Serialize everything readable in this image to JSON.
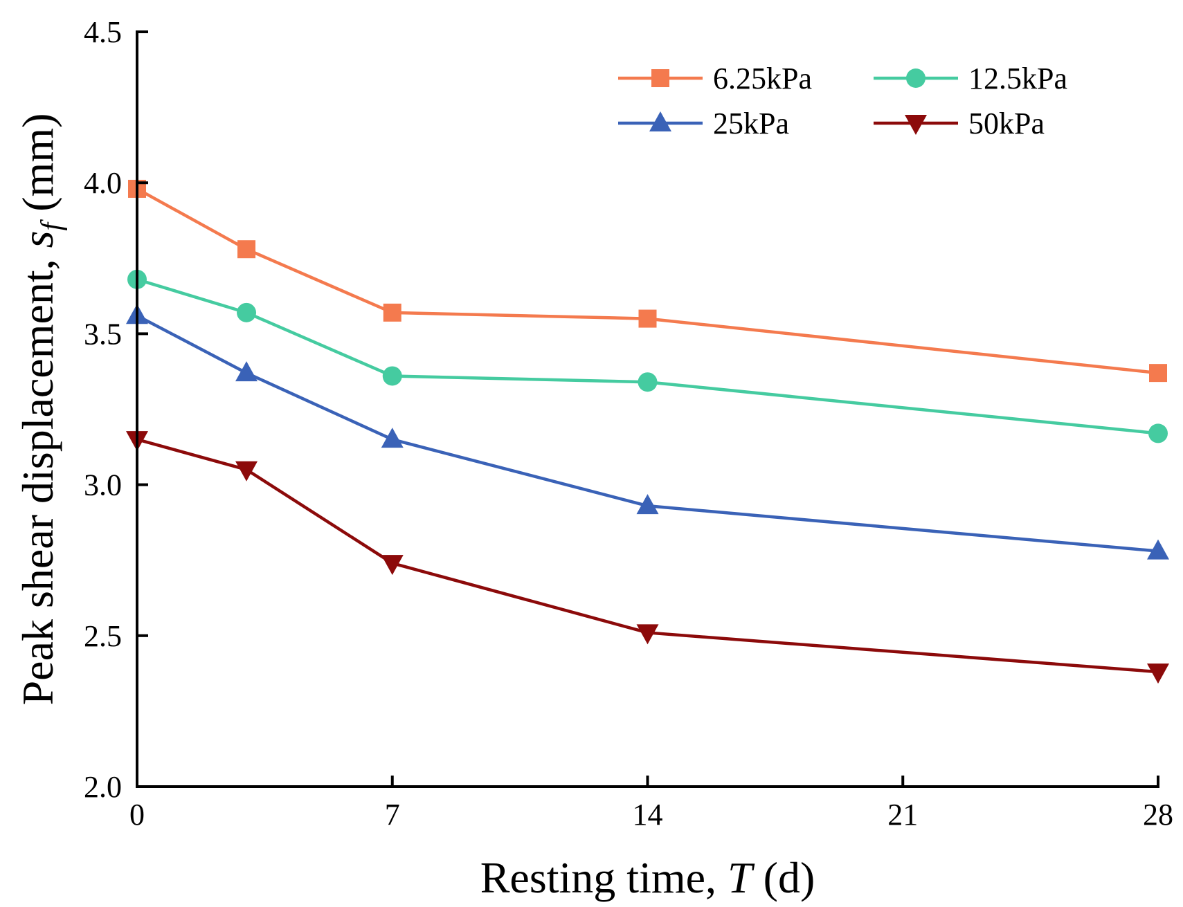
{
  "chart_data": {
    "type": "line",
    "title": "",
    "xlabel": {
      "prefix": "Resting time, ",
      "var": "T",
      "suffix": " (d)"
    },
    "ylabel": {
      "prefix": "Peak shear displacement, ",
      "var": "s",
      "sub": "f",
      "suffix": " (mm)"
    },
    "xlim": [
      0,
      28
    ],
    "ylim": [
      2.0,
      4.5
    ],
    "xticks": [
      0,
      7,
      14,
      21,
      28
    ],
    "xtick_labels": [
      "0",
      "7",
      "14",
      "21",
      "28"
    ],
    "yticks": [
      2.0,
      2.5,
      3.0,
      3.5,
      4.0,
      4.5
    ],
    "ytick_labels": [
      "2.0",
      "2.5",
      "3.0",
      "3.5",
      "4.0",
      "4.5"
    ],
    "grid": false,
    "legend_position": "top-right",
    "x": [
      0,
      3,
      7,
      14,
      28
    ],
    "series": [
      {
        "name": "6.25kPa",
        "color": "#F47A4E",
        "marker": "square",
        "values": [
          3.98,
          3.78,
          3.57,
          3.55,
          3.37
        ]
      },
      {
        "name": "12.5kPa",
        "color": "#45CBA0",
        "marker": "circle",
        "values": [
          3.68,
          3.57,
          3.36,
          3.34,
          3.17
        ]
      },
      {
        "name": "25kPa",
        "color": "#3A62B7",
        "marker": "triangle-up",
        "values": [
          3.56,
          3.37,
          3.15,
          2.93,
          2.78
        ]
      },
      {
        "name": "50kPa",
        "color": "#8C0A0A",
        "marker": "triangle-down",
        "values": [
          3.15,
          3.05,
          2.74,
          2.51,
          2.38
        ]
      }
    ]
  }
}
